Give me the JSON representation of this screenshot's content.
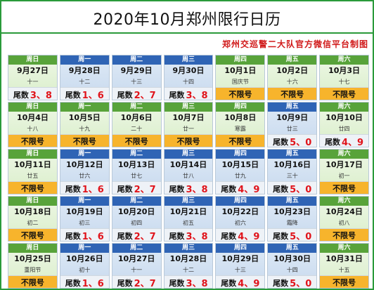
{
  "title": "2020年10月郑州限行日历",
  "credit": "郑州交巡警二大队官方微信平台制图",
  "weeks": [
    [
      {
        "dow": "周日",
        "date": "9月27日",
        "lunar": "十一",
        "rule": "尾数",
        "nums": "3、8",
        "kind": "workend"
      },
      {
        "dow": "周一",
        "date": "9月28日",
        "lunar": "十二",
        "rule": "尾数",
        "nums": "1、6",
        "kind": "work"
      },
      {
        "dow": "周二",
        "date": "9月29日",
        "lunar": "十三",
        "rule": "尾数",
        "nums": "2、7",
        "kind": "work"
      },
      {
        "dow": "周三",
        "date": "9月30日",
        "lunar": "十四",
        "rule": "尾数",
        "nums": "3、8",
        "kind": "work"
      },
      {
        "dow": "周四",
        "date": "10月1日",
        "lunar": "国庆节",
        "rule": "不限号",
        "nums": "",
        "kind": "rest"
      },
      {
        "dow": "周五",
        "date": "10月2日",
        "lunar": "十六",
        "rule": "不限号",
        "nums": "",
        "kind": "rest"
      },
      {
        "dow": "周六",
        "date": "10月3日",
        "lunar": "十七",
        "rule": "不限号",
        "nums": "",
        "kind": "rest"
      }
    ],
    [
      {
        "dow": "周日",
        "date": "10月4日",
        "lunar": "十八",
        "rule": "不限号",
        "nums": "",
        "kind": "rest"
      },
      {
        "dow": "周一",
        "date": "10月5日",
        "lunar": "十九",
        "rule": "不限号",
        "nums": "",
        "kind": "rest"
      },
      {
        "dow": "周二",
        "date": "10月6日",
        "lunar": "二十",
        "rule": "不限号",
        "nums": "",
        "kind": "rest"
      },
      {
        "dow": "周三",
        "date": "10月7日",
        "lunar": "廿一",
        "rule": "不限号",
        "nums": "",
        "kind": "rest"
      },
      {
        "dow": "周四",
        "date": "10月8日",
        "lunar": "寒露",
        "rule": "不限号",
        "nums": "",
        "kind": "rest"
      },
      {
        "dow": "周五",
        "date": "10月9日",
        "lunar": "廿三",
        "rule": "尾数",
        "nums": "5、0",
        "kind": "work"
      },
      {
        "dow": "周六",
        "date": "10月10日",
        "lunar": "廿四",
        "rule": "尾数",
        "nums": "4、9",
        "kind": "workend"
      }
    ],
    [
      {
        "dow": "周日",
        "date": "10月11日",
        "lunar": "廿五",
        "rule": "不限号",
        "nums": "",
        "kind": "rest"
      },
      {
        "dow": "周一",
        "date": "10月12日",
        "lunar": "廿六",
        "rule": "尾数",
        "nums": "1、6",
        "kind": "work"
      },
      {
        "dow": "周二",
        "date": "10月13日",
        "lunar": "廿七",
        "rule": "尾数",
        "nums": "2、7",
        "kind": "work"
      },
      {
        "dow": "周三",
        "date": "10月14日",
        "lunar": "廿八",
        "rule": "尾数",
        "nums": "3、8",
        "kind": "work"
      },
      {
        "dow": "周四",
        "date": "10月15日",
        "lunar": "廿九",
        "rule": "尾数",
        "nums": "4、9",
        "kind": "work"
      },
      {
        "dow": "周五",
        "date": "10月16日",
        "lunar": "三十",
        "rule": "尾数",
        "nums": "5、0",
        "kind": "work"
      },
      {
        "dow": "周六",
        "date": "10月17日",
        "lunar": "初一",
        "rule": "不限号",
        "nums": "",
        "kind": "rest"
      }
    ],
    [
      {
        "dow": "周日",
        "date": "10月18日",
        "lunar": "初二",
        "rule": "不限号",
        "nums": "",
        "kind": "rest"
      },
      {
        "dow": "周一",
        "date": "10月19日",
        "lunar": "初三",
        "rule": "尾数",
        "nums": "1、6",
        "kind": "work"
      },
      {
        "dow": "周二",
        "date": "10月20日",
        "lunar": "初四",
        "rule": "尾数",
        "nums": "2、7",
        "kind": "work"
      },
      {
        "dow": "周三",
        "date": "10月21日",
        "lunar": "初五",
        "rule": "尾数",
        "nums": "3、8",
        "kind": "work"
      },
      {
        "dow": "周四",
        "date": "10月22日",
        "lunar": "初六",
        "rule": "尾数",
        "nums": "4、9",
        "kind": "work"
      },
      {
        "dow": "周五",
        "date": "10月23日",
        "lunar": "霜降",
        "rule": "尾数",
        "nums": "5、0",
        "kind": "work"
      },
      {
        "dow": "周六",
        "date": "10月24日",
        "lunar": "初八",
        "rule": "不限号",
        "nums": "",
        "kind": "rest"
      }
    ],
    [
      {
        "dow": "周日",
        "date": "10月25日",
        "lunar": "重阳节",
        "rule": "不限号",
        "nums": "",
        "kind": "rest"
      },
      {
        "dow": "周一",
        "date": "10月26日",
        "lunar": "初十",
        "rule": "尾数",
        "nums": "1、6",
        "kind": "work"
      },
      {
        "dow": "周二",
        "date": "10月27日",
        "lunar": "十一",
        "rule": "尾数",
        "nums": "2、7",
        "kind": "work"
      },
      {
        "dow": "周三",
        "date": "10月28日",
        "lunar": "十二",
        "rule": "尾数",
        "nums": "3、8",
        "kind": "work"
      },
      {
        "dow": "周四",
        "date": "10月29日",
        "lunar": "十三",
        "rule": "尾数",
        "nums": "4、9",
        "kind": "work"
      },
      {
        "dow": "周五",
        "date": "10月30日",
        "lunar": "十四",
        "rule": "尾数",
        "nums": "5、0",
        "kind": "work"
      },
      {
        "dow": "周六",
        "date": "10月31日",
        "lunar": "十五",
        "rule": "不限号",
        "nums": "",
        "kind": "rest"
      }
    ]
  ]
}
